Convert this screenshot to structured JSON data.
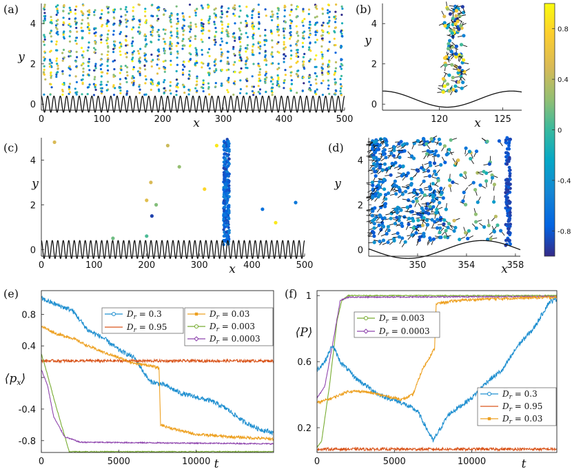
{
  "panel_labels": [
    "(a)",
    "(b)",
    "(c)",
    "(d)",
    "(e)",
    "(f)"
  ],
  "colorbar": {
    "ticks": [
      "0.8",
      "0.4",
      "0",
      "-0.4",
      "-0.8"
    ],
    "tick_values": [
      0.8,
      0.4,
      0,
      -0.4,
      -0.8
    ],
    "range": [
      -1,
      1
    ],
    "colormap": "parula"
  },
  "chart_data": [
    {
      "panel": "(a)",
      "type": "scatter",
      "xlabel": "x",
      "ylabel": "y",
      "xlim": [
        0,
        500
      ],
      "ylim": [
        -0.3,
        5
      ],
      "xticks": [
        0,
        100,
        200,
        300,
        400,
        500
      ],
      "xtick_labels": [
        "0",
        "100",
        "200",
        "300",
        "400",
        "500"
      ],
      "yticks": [
        0,
        2,
        4
      ],
      "ytick_labels": [
        "0",
        "2",
        "4"
      ],
      "wall": {
        "periods": 48,
        "amplitude": 0.4,
        "offset": 0
      },
      "particles": "dense vertical columns across the whole domain, colors spanning the full colormap"
    },
    {
      "panel": "(b)",
      "type": "scatter",
      "xlabel": "x",
      "ylabel": "y",
      "xlim": [
        115.5,
        126.5
      ],
      "ylim": [
        -0.3,
        5
      ],
      "xticks": [
        120,
        125
      ],
      "xtick_labels": [
        "120",
        "125"
      ],
      "yticks": [
        0,
        2,
        4
      ],
      "ytick_labels": [
        "0",
        "2",
        "4"
      ],
      "wall": {
        "amplitude": 0.4,
        "offset": 0.2
      },
      "cluster": {
        "x_range": [
          120.3,
          122
        ],
        "y_range": [
          0.5,
          5
        ]
      }
    },
    {
      "panel": "(c)",
      "type": "scatter",
      "xlabel": "x",
      "ylabel": "y",
      "xlim": [
        0,
        500
      ],
      "ylim": [
        -0.3,
        5
      ],
      "xticks": [
        0,
        100,
        200,
        300,
        400,
        500
      ],
      "xtick_labels": [
        "0",
        "100",
        "200",
        "300",
        "400",
        "500"
      ],
      "yticks": [
        0,
        2,
        4
      ],
      "ytick_labels": [
        "0",
        "2",
        "4"
      ],
      "wall": {
        "periods": 48,
        "amplitude": 0.4,
        "offset": 0
      },
      "band": {
        "x_range": [
          346,
          357
        ],
        "color_value": -0.7
      },
      "points": [
        {
          "x": 25,
          "y": 4.8,
          "c": 0.5
        },
        {
          "x": 136,
          "y": 0.5,
          "c": 0.15
        },
        {
          "x": 200,
          "y": 2.2,
          "c": 0.55
        },
        {
          "x": 200,
          "y": 0.6,
          "c": 0.05
        },
        {
          "x": 208,
          "y": 3.0,
          "c": 0.5
        },
        {
          "x": 210,
          "y": 1.5,
          "c": -0.9
        },
        {
          "x": 218,
          "y": 2.0,
          "c": 0.2
        },
        {
          "x": 240,
          "y": 4.65,
          "c": 0.45
        },
        {
          "x": 262,
          "y": 3.7,
          "c": 0.25
        },
        {
          "x": 310,
          "y": 2.7,
          "c": 0.8
        },
        {
          "x": 333,
          "y": 4.65,
          "c": 0.9
        },
        {
          "x": 420,
          "y": 1.8,
          "c": -0.65
        },
        {
          "x": 445,
          "y": 1.2,
          "c": 0.9
        },
        {
          "x": 483,
          "y": 2.1,
          "c": -0.6
        }
      ]
    },
    {
      "panel": "(d)",
      "type": "scatter",
      "xlabel": "x",
      "ylabel": "y",
      "xlim": [
        346,
        358.4
      ],
      "ylim": [
        -0.3,
        5
      ],
      "xticks": [
        350,
        354,
        358
      ],
      "xtick_labels": [
        "350",
        "354",
        "358"
      ],
      "yticks": [
        0,
        2,
        4
      ],
      "ytick_labels": [
        "0",
        "2",
        "4"
      ],
      "wall": {
        "amplitude": 0.4,
        "offset": 0.0
      },
      "cluster_left": {
        "x_range": [
          346.3,
          349.5
        ]
      },
      "cluster_right": {
        "x_range": [
          357.2,
          357.6
        ]
      }
    },
    {
      "panel": "(e)",
      "type": "line",
      "xlabel": "t",
      "ylabel": "⟨p_x⟩",
      "xlim": [
        0,
        15000
      ],
      "ylim": [
        -0.95,
        1.1
      ],
      "xticks": [
        0,
        5000,
        10000
      ],
      "xtick_labels": [
        "0",
        "5000",
        "10000"
      ],
      "yticks": [
        0.8,
        0.4,
        0,
        -0.4,
        -0.8
      ],
      "ytick_labels": [
        "0.8",
        "0.4",
        "",
        "-0.4",
        "-0.8"
      ],
      "series": [
        {
          "name": "D_r = 0.3",
          "color": "#1f8fd0",
          "marker": "circle",
          "points": [
            [
              0,
              1.0
            ],
            [
              1000,
              0.92
            ],
            [
              2000,
              0.85
            ],
            [
              3000,
              0.6
            ],
            [
              4000,
              0.5
            ],
            [
              5000,
              0.35
            ],
            [
              6000,
              0.25
            ],
            [
              7000,
              -0.05
            ],
            [
              8000,
              -0.1
            ],
            [
              9000,
              -0.2
            ],
            [
              10000,
              -0.25
            ],
            [
              11000,
              -0.3
            ],
            [
              12000,
              -0.4
            ],
            [
              13000,
              -0.55
            ],
            [
              14000,
              -0.65
            ],
            [
              15000,
              -0.7
            ]
          ]
        },
        {
          "name": "D_r = 0.95",
          "color": "#d9541a",
          "marker": "none",
          "points": [
            [
              0,
              0.21
            ],
            [
              15000,
              0.21
            ]
          ]
        },
        {
          "name": "D_r = 0.03",
          "color": "#eda020",
          "marker": "square",
          "points": [
            [
              0,
              0.65
            ],
            [
              1000,
              0.55
            ],
            [
              2000,
              0.5
            ],
            [
              3000,
              0.4
            ],
            [
              4000,
              0.32
            ],
            [
              5000,
              0.25
            ],
            [
              6000,
              0.18
            ],
            [
              7000,
              0.15
            ],
            [
              7600,
              0.12
            ],
            [
              7700,
              -0.6
            ],
            [
              8500,
              -0.65
            ],
            [
              10000,
              -0.72
            ],
            [
              12000,
              -0.75
            ],
            [
              14000,
              -0.77
            ],
            [
              15000,
              -0.78
            ]
          ]
        },
        {
          "name": "D_r = 0.003",
          "color": "#77ac30",
          "marker": "circle",
          "points": [
            [
              0,
              0.3
            ],
            [
              300,
              0.1
            ],
            [
              1000,
              -0.4
            ],
            [
              1800,
              -0.94
            ],
            [
              15000,
              -0.94
            ]
          ]
        },
        {
          "name": "D_r = 0.0003",
          "color": "#8e44ad",
          "marker": "diamond",
          "points": [
            [
              0,
              0.1
            ],
            [
              400,
              -0.1
            ],
            [
              800,
              -0.5
            ],
            [
              1500,
              -0.75
            ],
            [
              2500,
              -0.82
            ],
            [
              15000,
              -0.84
            ]
          ]
        }
      ]
    },
    {
      "panel": "(f)",
      "type": "line",
      "xlabel": "t",
      "ylabel": "⟨P⟩",
      "xlim": [
        0,
        15500
      ],
      "ylim": [
        0.05,
        1.03
      ],
      "xticks": [
        0,
        5000,
        10000
      ],
      "xtick_labels": [
        "0",
        "5000",
        "10000"
      ],
      "yticks": [
        1,
        0.6,
        0.2
      ],
      "ytick_labels": [
        "1",
        "0.6",
        "0.2"
      ],
      "series": [
        {
          "name": "D_r = 0.003",
          "color": "#77ac30",
          "marker": "circle",
          "points": [
            [
              0,
              0.08
            ],
            [
              300,
              0.12
            ],
            [
              800,
              0.45
            ],
            [
              1300,
              0.85
            ],
            [
              1600,
              0.97
            ],
            [
              2000,
              1.0
            ],
            [
              15500,
              1.0
            ]
          ]
        },
        {
          "name": "D_r = 0.0003",
          "color": "#8e44ad",
          "marker": "diamond",
          "points": [
            [
              0,
              0.38
            ],
            [
              500,
              0.45
            ],
            [
              1000,
              0.7
            ],
            [
              1500,
              0.97
            ],
            [
              2000,
              0.99
            ],
            [
              15500,
              0.995
            ]
          ]
        },
        {
          "name": "D_r = 0.3",
          "color": "#1f8fd0",
          "marker": "circle",
          "points": [
            [
              0,
              0.55
            ],
            [
              500,
              0.6
            ],
            [
              1000,
              0.7
            ],
            [
              1500,
              0.6
            ],
            [
              2500,
              0.5
            ],
            [
              4000,
              0.4
            ],
            [
              5500,
              0.35
            ],
            [
              6500,
              0.3
            ],
            [
              7500,
              0.12
            ],
            [
              8500,
              0.28
            ],
            [
              10000,
              0.38
            ],
            [
              11000,
              0.48
            ],
            [
              12000,
              0.55
            ],
            [
              13000,
              0.7
            ],
            [
              14000,
              0.8
            ],
            [
              15000,
              0.96
            ],
            [
              15500,
              0.98
            ]
          ]
        },
        {
          "name": "D_r = 0.95",
          "color": "#d9541a",
          "marker": "none",
          "points": [
            [
              0,
              0.07
            ],
            [
              15500,
              0.07
            ]
          ]
        },
        {
          "name": "D_r = 0.03",
          "color": "#eda020",
          "marker": "square",
          "points": [
            [
              0,
              0.35
            ],
            [
              1000,
              0.38
            ],
            [
              2000,
              0.42
            ],
            [
              3000,
              0.42
            ],
            [
              4000,
              0.4
            ],
            [
              5500,
              0.37
            ],
            [
              6200,
              0.4
            ],
            [
              6800,
              0.55
            ],
            [
              7600,
              0.68
            ],
            [
              7700,
              0.95
            ],
            [
              9000,
              0.97
            ],
            [
              11000,
              0.98
            ],
            [
              13000,
              0.985
            ],
            [
              15500,
              0.99
            ]
          ]
        }
      ]
    }
  ]
}
